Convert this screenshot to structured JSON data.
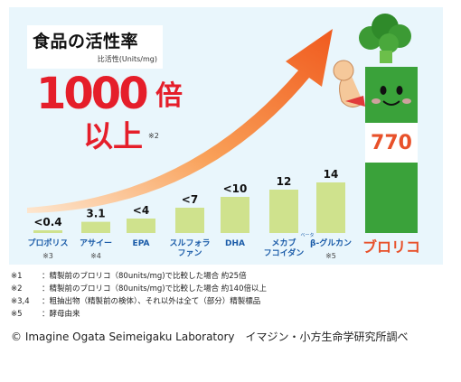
{
  "title": "食品の活性率",
  "subtitle": "比活性(Units/mg)",
  "headline": {
    "number": "1000",
    "unit": "倍",
    "suffix": "以上",
    "note": "※2"
  },
  "chart_data": {
    "type": "bar",
    "categories": [
      "プロポリス",
      "アサイー",
      "EPA",
      "スルフォラファン",
      "DHA",
      "メカブフコイダン",
      "β-グルカン",
      "ブロリコ"
    ],
    "category_lines": [
      [
        "プロポリス"
      ],
      [
        "アサイー"
      ],
      [
        "EPA"
      ],
      [
        "スルフォラ",
        "ファン"
      ],
      [
        "DHA"
      ],
      [
        "メカブ",
        "フコイダン"
      ],
      [
        "β-グルカン"
      ],
      [
        "ブロリコ"
      ]
    ],
    "category_notes": [
      "※3",
      "※4",
      "",
      "",
      "",
      "",
      "※5",
      ""
    ],
    "beta_ruby": "ベータ",
    "values": [
      0.4,
      3.1,
      4,
      7,
      10,
      12,
      14,
      770
    ],
    "value_labels": [
      "<0.4",
      "3.1",
      "<4",
      "<7",
      "<10",
      "12",
      "14",
      "770"
    ],
    "colors": {
      "bar": "#cfe28d",
      "highlight": "#3aa23a",
      "label": "#1a5ba8",
      "highlight_label": "#e8512a",
      "arrow": "#f05a1e"
    }
  },
  "footnotes": [
    {
      "mark": "※1",
      "text": "：精製前のブロリコ（80units/mg)で比較した場合 約25倍"
    },
    {
      "mark": "※2",
      "text": "：精製前のブロリコ（80units/mg)で比較した場合 約140倍以上"
    },
    {
      "mark": "※3,4",
      "text": "：粗抽出物（精製前の検体）、それ以外は全て（部分）精製標品"
    },
    {
      "mark": "※5",
      "text": "：酵母由来"
    }
  ],
  "copyright": "© Imagine Ogata Seimeigaku Laboratory　イマジン・小方生命学研究所調べ"
}
